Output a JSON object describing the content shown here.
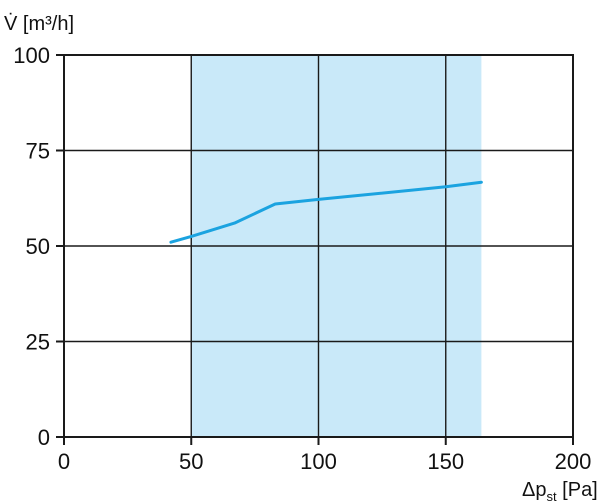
{
  "chart_data": {
    "type": "line",
    "title": "",
    "ylabel": "V̇ [m³/h]",
    "xlabel_symbol": "Δp",
    "xlabel_subscript": "st",
    "xlabel_unit": " [Pa]",
    "xlim": [
      0,
      200
    ],
    "ylim": [
      0,
      100
    ],
    "xticks": [
      0,
      50,
      100,
      150,
      200
    ],
    "yticks": [
      0,
      25,
      50,
      75,
      100
    ],
    "xtick_labels": [
      "0",
      "50",
      "100",
      "150",
      "200"
    ],
    "ytick_labels": [
      "0",
      "25",
      "50",
      "75",
      "100"
    ],
    "grid": true,
    "shaded_region": {
      "x_start": 50,
      "x_end": 164
    },
    "series": [
      {
        "x": [
          42,
          50,
          67,
          83,
          100,
          150,
          164
        ],
        "y": [
          51,
          52.5,
          56,
          61,
          62.2,
          65.5,
          66.7
        ]
      }
    ],
    "colors": {
      "line": "#1ba3e0",
      "shade": "#c9e9f9",
      "grid": "#1a1a1a",
      "axis": "#1a1a1a"
    }
  }
}
